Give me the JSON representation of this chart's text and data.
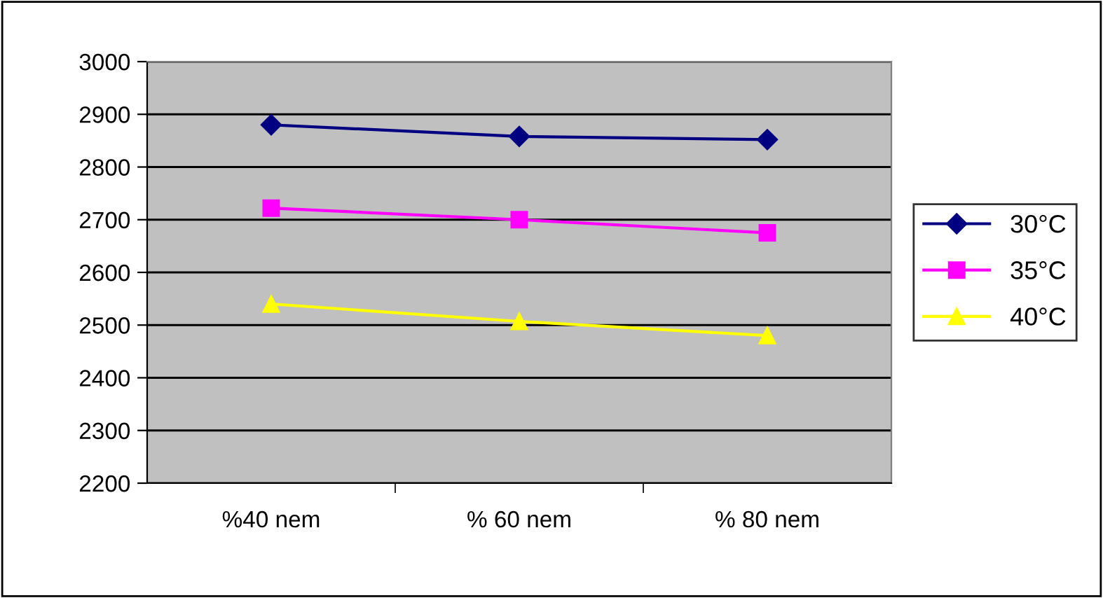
{
  "chart_data": {
    "type": "line",
    "categories": [
      "%40 nem",
      "% 60 nem",
      "% 80 nem"
    ],
    "series": [
      {
        "name": "30°C",
        "color": "#000080",
        "marker": "diamond",
        "values": [
          2880,
          2858,
          2852
        ]
      },
      {
        "name": "35°C",
        "color": "#ff00ff",
        "marker": "square",
        "values": [
          2722,
          2700,
          2675
        ]
      },
      {
        "name": "40°C",
        "color": "#ffff00",
        "marker": "triangle",
        "values": [
          2540,
          2507,
          2480
        ]
      }
    ],
    "ylim": [
      2200,
      3000
    ],
    "yticks": [
      2200,
      2300,
      2400,
      2500,
      2600,
      2700,
      2800,
      2900,
      3000
    ],
    "grid": "y",
    "legend": "right",
    "line_style": "solid"
  }
}
